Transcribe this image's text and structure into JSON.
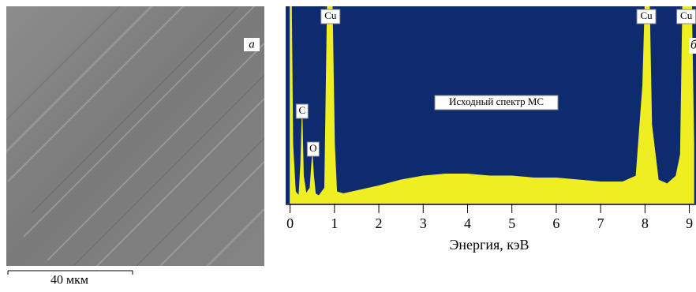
{
  "image": {
    "panel_label": "a",
    "scale_bar": "40 мкм"
  },
  "chart_data": {
    "type": "area",
    "panel_label": "б",
    "annotation": "Исходный спектр МС",
    "x_label": "Энергия, кэВ",
    "x": [
      0,
      0.03,
      0.06,
      0.12,
      0.2,
      0.24,
      0.27,
      0.3,
      0.36,
      0.45,
      0.5,
      0.53,
      0.57,
      0.65,
      0.78,
      0.84,
      0.88,
      0.95,
      1.0,
      1.05,
      1.2,
      1.6,
      2.0,
      2.5,
      3.0,
      3.5,
      4.0,
      4.5,
      5.0,
      5.5,
      6.0,
      6.5,
      7.0,
      7.5,
      7.8,
      7.95,
      8.0,
      8.1,
      8.15,
      8.3,
      8.5,
      8.7,
      8.8,
      8.85,
      8.95,
      9.05,
      9.1
    ],
    "values": [
      100,
      100,
      30,
      6,
      4,
      20,
      44,
      14,
      5,
      8,
      24,
      14,
      5,
      4,
      8,
      100,
      100,
      100,
      30,
      6,
      5,
      7,
      9,
      12,
      14,
      15,
      15,
      14,
      14,
      13,
      13,
      12,
      11,
      11,
      14,
      60,
      100,
      100,
      40,
      12,
      10,
      14,
      25,
      100,
      100,
      100,
      30
    ],
    "peaks": [
      {
        "label": "C",
        "x": 0.27
      },
      {
        "label": "O",
        "x": 0.52
      },
      {
        "label": "Cu",
        "x": 0.91
      },
      {
        "label": "Cu",
        "x": 8.03
      },
      {
        "label": "Cu",
        "x": 8.93
      }
    ],
    "xlim": [
      -0.1,
      9.15
    ],
    "ylim": [
      0,
      100
    ],
    "xticks": [
      0,
      1,
      2,
      3,
      4,
      5,
      6,
      7,
      8,
      9
    ],
    "background": "#0d2b6e",
    "color": "#eeee22"
  }
}
